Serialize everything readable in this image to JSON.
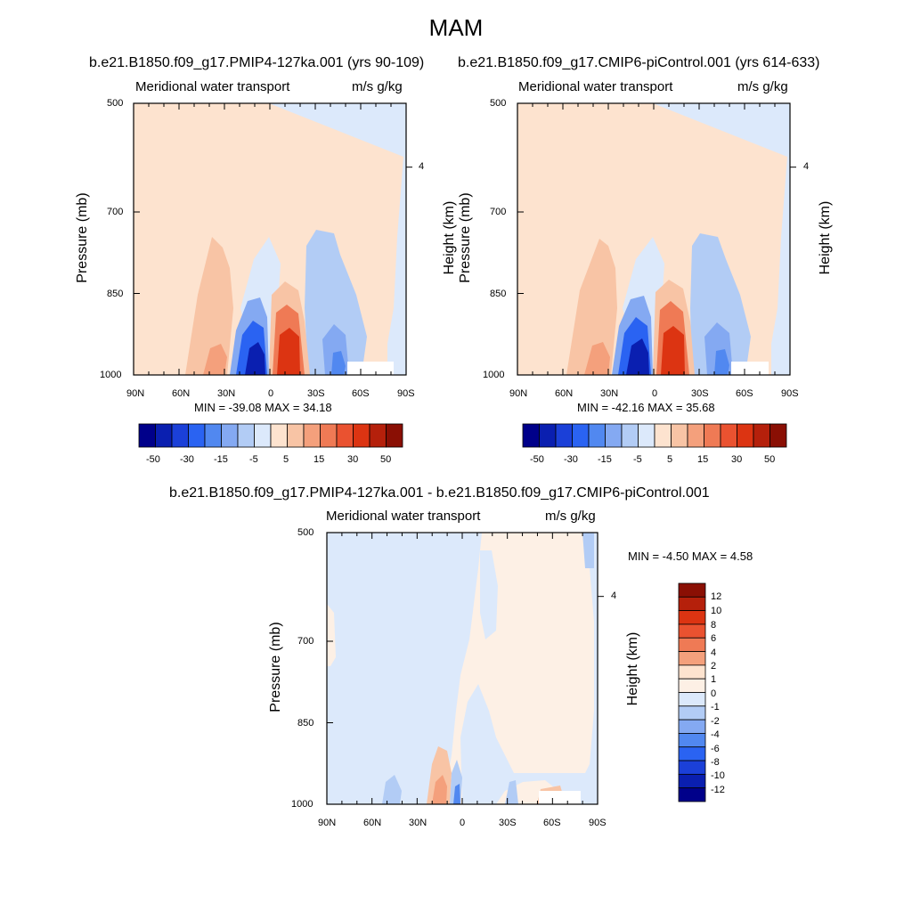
{
  "title": "MAM",
  "panels": [
    {
      "id": "left",
      "title": "b.e21.B1850.f09_g17.PMIP4-127ka.001 (yrs 90-109)",
      "left_label": "Meridional water transport",
      "right_label": "m/s g/kg",
      "ylabel": "Pressure (mb)",
      "y2label": "Height (km)",
      "y_ticks": [
        "500",
        "700",
        "850",
        "1000"
      ],
      "y2_ticks": [
        "4"
      ],
      "x_ticks": [
        "90N",
        "60N",
        "30N",
        "0",
        "30S",
        "60S",
        "90S"
      ],
      "minmax": "MIN = -39.08  MAX =  34.18",
      "colorbar_labels": [
        "-50",
        "-30",
        "-15",
        "-5",
        "5",
        "15",
        "30",
        "50"
      ]
    },
    {
      "id": "right",
      "title": "b.e21.B1850.f09_g17.CMIP6-piControl.001 (yrs 614-633)",
      "left_label": "Meridional water transport",
      "right_label": "m/s g/kg",
      "ylabel": "Pressure (mb)",
      "y2label": "Height (km)",
      "y_ticks": [
        "500",
        "700",
        "850",
        "1000"
      ],
      "y2_ticks": [
        "4"
      ],
      "x_ticks": [
        "90N",
        "60N",
        "30N",
        "0",
        "30S",
        "60S",
        "90S"
      ],
      "minmax": "MIN = -42.16  MAX =  35.68",
      "colorbar_labels": [
        "-50",
        "-30",
        "-15",
        "-5",
        "5",
        "15",
        "30",
        "50"
      ]
    },
    {
      "id": "bottom",
      "title": "b.e21.B1850.f09_g17.PMIP4-127ka.001 - b.e21.B1850.f09_g17.CMIP6-piControl.001",
      "left_label": "Meridional water transport",
      "right_label": "m/s g/kg",
      "ylabel": "Pressure (mb)",
      "y2label": "Height (km)",
      "y_ticks": [
        "500",
        "700",
        "850",
        "1000"
      ],
      "y2_ticks": [
        "4"
      ],
      "x_ticks": [
        "90N",
        "60N",
        "30N",
        "0",
        "30S",
        "60S",
        "90S"
      ],
      "minmax": "MIN =  -4.50  MAX =   4.58",
      "colorbar_labels": [
        "12",
        "10",
        "8",
        "6",
        "4",
        "2",
        "1",
        "0",
        "-1",
        "-2",
        "-4",
        "-6",
        "-8",
        "-10",
        "-12"
      ]
    }
  ],
  "colors": {
    "scale_main": [
      "#00008a",
      "#0a1fb0",
      "#1b40d8",
      "#2a63f2",
      "#5188f0",
      "#84a9f2",
      "#b2ccf5",
      "#dce9fb",
      "#fde3cf",
      "#f8c4a5",
      "#f4a07c",
      "#ef7a55",
      "#ea5230",
      "#dc3412",
      "#b5200b",
      "#8a0f04"
    ],
    "scale_diff": [
      "#8a0f04",
      "#b5200b",
      "#dc3412",
      "#ea5230",
      "#ef7a55",
      "#f4a07c",
      "#fde3cf",
      "#fdf0e5",
      "#dce9fb",
      "#b2ccf5",
      "#84a9f2",
      "#5188f0",
      "#2a63f2",
      "#1b40d8",
      "#0a1fb0",
      "#00008a"
    ]
  },
  "chart_data": [
    {
      "type": "contour",
      "panel": "left",
      "x": [
        "90N",
        "60N",
        "30N",
        "0",
        "30S",
        "60S",
        "90S"
      ],
      "y": [
        500,
        700,
        850,
        1000
      ],
      "min": -39.08,
      "max": 34.18,
      "levels": [
        -50,
        -40,
        -30,
        -25,
        -20,
        -15,
        -10,
        -5,
        0,
        5,
        10,
        15,
        20,
        25,
        30,
        40,
        50
      ]
    },
    {
      "type": "contour",
      "panel": "right",
      "x": [
        "90N",
        "60N",
        "30N",
        "0",
        "30S",
        "60S",
        "90S"
      ],
      "y": [
        500,
        700,
        850,
        1000
      ],
      "min": -42.16,
      "max": 35.68,
      "levels": [
        -50,
        -40,
        -30,
        -25,
        -20,
        -15,
        -10,
        -5,
        0,
        5,
        10,
        15,
        20,
        25,
        30,
        40,
        50
      ]
    },
    {
      "type": "contour",
      "panel": "bottom",
      "x": [
        "90N",
        "60N",
        "30N",
        "0",
        "30S",
        "60S",
        "90S"
      ],
      "y": [
        500,
        700,
        850,
        1000
      ],
      "min": -4.5,
      "max": 4.58,
      "levels": [
        -12,
        -10,
        -8,
        -6,
        -4,
        -2,
        -1,
        0,
        1,
        2,
        4,
        6,
        8,
        10,
        12
      ]
    }
  ]
}
